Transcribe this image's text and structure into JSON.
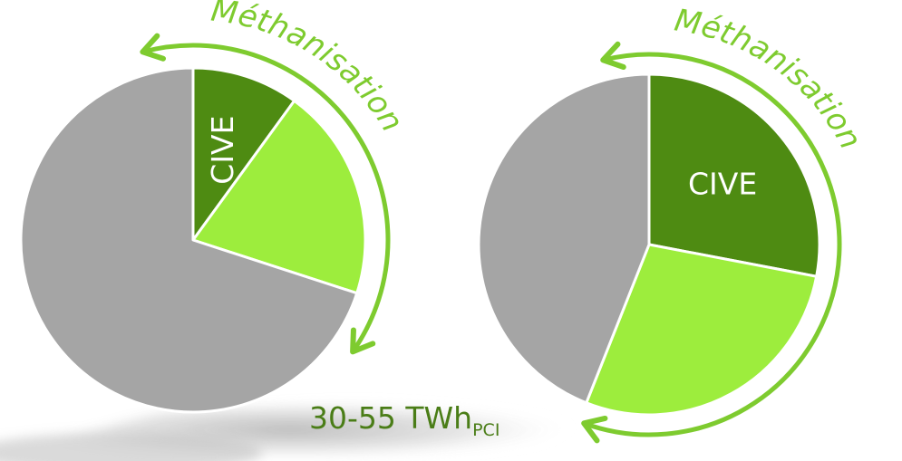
{
  "chart_data": [
    {
      "type": "pie",
      "title": "",
      "start_angle_deg": 0,
      "direction": "clockwise",
      "slices": [
        {
          "label": "CIVE",
          "share": 0.1,
          "color": "#4e8b12"
        },
        {
          "label": "",
          "share": 0.2,
          "color": "#9ded3d"
        },
        {
          "label": "",
          "share": 0.7,
          "color": "#a5a5a5"
        }
      ],
      "arc_annotation": "Méthanisation",
      "arc_color": "#7ecb2f",
      "energy": {
        "value": "30-55 TWh",
        "subscript": "PCI",
        "color": "#4a7d17"
      }
    },
    {
      "type": "pie",
      "title": "",
      "start_angle_deg": 0,
      "direction": "clockwise",
      "slices": [
        {
          "label": "CIVE",
          "share": 0.28,
          "color": "#4e8b12"
        },
        {
          "label": "",
          "share": 0.28,
          "color": "#9ded3d"
        },
        {
          "label": "",
          "share": 0.44,
          "color": "#a5a5a5"
        }
      ],
      "arc_annotation": "Méthanisation",
      "arc_color": "#7ecb2f"
    }
  ]
}
